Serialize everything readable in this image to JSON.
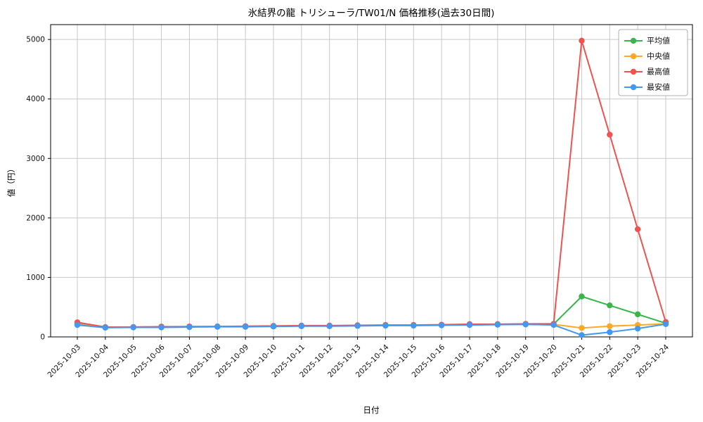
{
  "chart_data": {
    "type": "line",
    "title": "氷結界の龍 トリシューラ/TW01/N 価格推移(過去30日間)",
    "xlabel": "日付",
    "ylabel": "値（円）",
    "ylim": [
      0,
      5250
    ],
    "yticks": [
      0,
      1000,
      2000,
      3000,
      4000,
      5000
    ],
    "grid": true,
    "legend_position": "upper right",
    "categories": [
      "2025-10-03",
      "2025-10-04",
      "2025-10-05",
      "2025-10-06",
      "2025-10-07",
      "2025-10-08",
      "2025-10-09",
      "2025-10-10",
      "2025-10-11",
      "2025-10-12",
      "2025-10-13",
      "2025-10-14",
      "2025-10-15",
      "2025-10-16",
      "2025-10-17",
      "2025-10-18",
      "2025-10-19",
      "2025-10-20",
      "2025-10-21",
      "2025-10-22",
      "2025-10-23",
      "2025-10-24"
    ],
    "series": [
      {
        "name": "平均値",
        "color": "#39b54a",
        "values": [
          220,
          160,
          165,
          170,
          170,
          175,
          175,
          180,
          185,
          185,
          190,
          195,
          195,
          200,
          210,
          210,
          215,
          215,
          680,
          530,
          380,
          230
        ]
      },
      {
        "name": "中央値",
        "color": "#ffa726",
        "values": [
          215,
          160,
          165,
          175,
          170,
          175,
          175,
          180,
          185,
          185,
          190,
          195,
          195,
          200,
          210,
          210,
          215,
          210,
          150,
          180,
          200,
          220
        ]
      },
      {
        "name": "最高値",
        "color": "#ef5350",
        "values": [
          245,
          165,
          165,
          170,
          175,
          175,
          180,
          185,
          190,
          190,
          195,
          200,
          200,
          205,
          215,
          215,
          220,
          220,
          4980,
          3400,
          1810,
          250
        ]
      },
      {
        "name": "最安値",
        "color": "#4398f0",
        "values": [
          200,
          155,
          160,
          160,
          165,
          170,
          170,
          175,
          180,
          180,
          185,
          190,
          190,
          195,
          200,
          205,
          210,
          200,
          30,
          80,
          140,
          215
        ]
      }
    ]
  }
}
